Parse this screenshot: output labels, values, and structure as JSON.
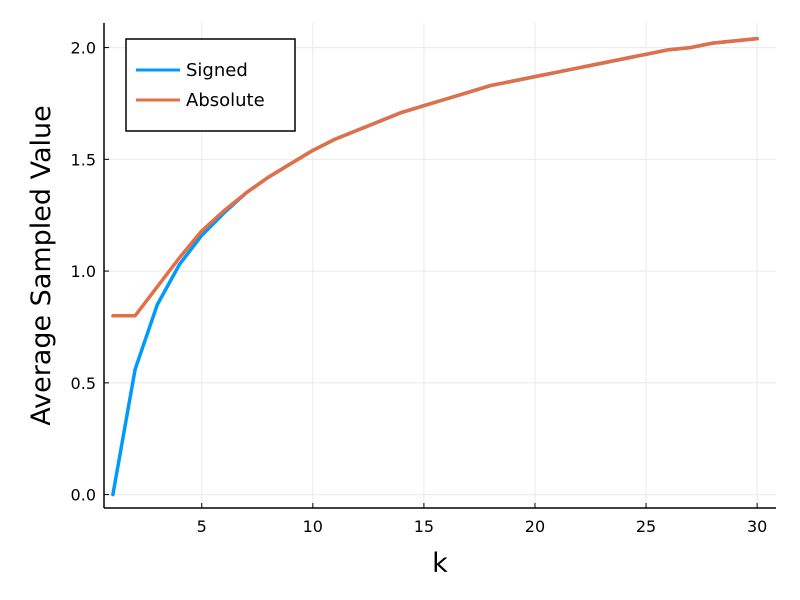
{
  "chart_data": {
    "type": "line",
    "xlabel": "k",
    "ylabel": "Average Sampled Value",
    "xlim": [
      0.6,
      30.85
    ],
    "ylim": [
      -0.06,
      2.11
    ],
    "xticks": [
      5,
      10,
      15,
      20,
      25,
      30
    ],
    "yticks": [
      0.0,
      0.5,
      1.0,
      1.5,
      2.0
    ],
    "xtick_labels": [
      "5",
      "10",
      "15",
      "20",
      "25",
      "30"
    ],
    "ytick_labels": [
      "0.0",
      "0.5",
      "1.0",
      "1.5",
      "2.0"
    ],
    "grid": true,
    "legend_position": "top-left",
    "x": [
      1,
      2,
      3,
      4,
      5,
      6,
      7,
      8,
      9,
      10,
      11,
      12,
      13,
      14,
      15,
      16,
      17,
      18,
      19,
      20,
      21,
      22,
      23,
      24,
      25,
      26,
      27,
      28,
      29,
      30
    ],
    "series": [
      {
        "name": "Signed",
        "color": "#009af9",
        "values": [
          0.0,
          0.56,
          0.85,
          1.03,
          1.16,
          1.26,
          1.35,
          1.42,
          1.48,
          1.54,
          1.59,
          1.63,
          1.67,
          1.71,
          1.74,
          1.77,
          1.8,
          1.83,
          1.85,
          1.87,
          1.89,
          1.91,
          1.93,
          1.95,
          1.97,
          1.99,
          2.0,
          2.02,
          2.03,
          2.04
        ]
      },
      {
        "name": "Absolute",
        "color": "#e26f46",
        "values": [
          0.8,
          0.8,
          0.93,
          1.06,
          1.18,
          1.27,
          1.35,
          1.42,
          1.48,
          1.54,
          1.59,
          1.63,
          1.67,
          1.71,
          1.74,
          1.77,
          1.8,
          1.83,
          1.85,
          1.87,
          1.89,
          1.91,
          1.93,
          1.95,
          1.97,
          1.99,
          2.0,
          2.02,
          2.03,
          2.04
        ]
      }
    ]
  }
}
